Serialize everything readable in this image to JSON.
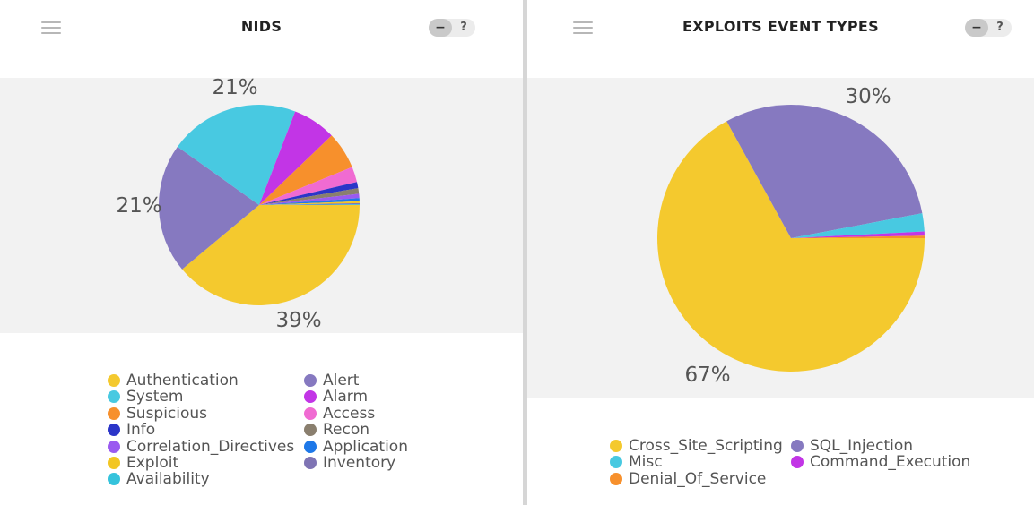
{
  "panels": [
    {
      "title": "NIDS",
      "minimize_label": "−",
      "help_label": "?",
      "chart_data": {
        "type": "pie",
        "slices": [
          {
            "name": "Authentication",
            "value": 39,
            "color": "#f4c92e"
          },
          {
            "name": "Alert",
            "value": 21,
            "color": "#8679c0"
          },
          {
            "name": "System",
            "value": 21,
            "color": "#48c9e1"
          },
          {
            "name": "Alarm",
            "value": 7,
            "color": "#c235e6"
          },
          {
            "name": "Suspicious",
            "value": 6,
            "color": "#f7902c"
          },
          {
            "name": "Access",
            "value": 2.5,
            "color": "#f06bd2"
          },
          {
            "name": "Info",
            "value": 1,
            "color": "#2b35c8"
          },
          {
            "name": "Recon",
            "value": 0.9,
            "color": "#8a7f6e"
          },
          {
            "name": "Correlation_Directives",
            "value": 0.7,
            "color": "#9a5af0"
          },
          {
            "name": "Application",
            "value": 0.5,
            "color": "#1e78e8"
          },
          {
            "name": "Exploit",
            "value": 0.3,
            "color": "#f2c623"
          },
          {
            "name": "Inventory",
            "value": 0.2,
            "color": "#7f74b4"
          },
          {
            "name": "Availability",
            "value": 0.1,
            "color": "#35c3dc"
          }
        ],
        "data_labels": [
          {
            "text": "39%"
          },
          {
            "text": "21%"
          },
          {
            "text": "21%"
          }
        ],
        "legend": [
          {
            "label": "Authentication",
            "color": "#f4c92e"
          },
          {
            "label": "System",
            "color": "#48c9e1"
          },
          {
            "label": "Suspicious",
            "color": "#f7902c"
          },
          {
            "label": "Info",
            "color": "#2b35c8"
          },
          {
            "label": "Correlation_Directives",
            "color": "#9a5af0"
          },
          {
            "label": "Exploit",
            "color": "#f2c623"
          },
          {
            "label": "Availability",
            "color": "#35c3dc"
          },
          {
            "label": "Alert",
            "color": "#8679c0"
          },
          {
            "label": "Alarm",
            "color": "#c235e6"
          },
          {
            "label": "Access",
            "color": "#f06bd2"
          },
          {
            "label": "Recon",
            "color": "#8a7f6e"
          },
          {
            "label": "Application",
            "color": "#1e78e8"
          },
          {
            "label": "Inventory",
            "color": "#7f74b4"
          }
        ],
        "legend_placement": "bottom"
      }
    },
    {
      "title": "EXPLOITS EVENT TYPES",
      "minimize_label": "−",
      "help_label": "?",
      "chart_data": {
        "type": "pie",
        "slices": [
          {
            "name": "Cross_Site_Scripting",
            "value": 67,
            "color": "#f4c92e"
          },
          {
            "name": "SQL_Injection",
            "value": 30,
            "color": "#8679c0"
          },
          {
            "name": "Misc",
            "value": 2.2,
            "color": "#48c9e1"
          },
          {
            "name": "Command_Execution",
            "value": 0.5,
            "color": "#c235e6"
          },
          {
            "name": "Denial_Of_Service",
            "value": 0.3,
            "color": "#f7902c"
          }
        ],
        "data_labels": [
          {
            "text": "67%"
          },
          {
            "text": "30%"
          }
        ],
        "legend": [
          {
            "label": "Cross_Site_Scripting",
            "color": "#f4c92e"
          },
          {
            "label": "Misc",
            "color": "#48c9e1"
          },
          {
            "label": "Denial_Of_Service",
            "color": "#f7902c"
          },
          {
            "label": "SQL_Injection",
            "color": "#8679c0"
          },
          {
            "label": "Command_Execution",
            "color": "#c235e6"
          }
        ],
        "legend_placement": "bottom"
      }
    }
  ]
}
